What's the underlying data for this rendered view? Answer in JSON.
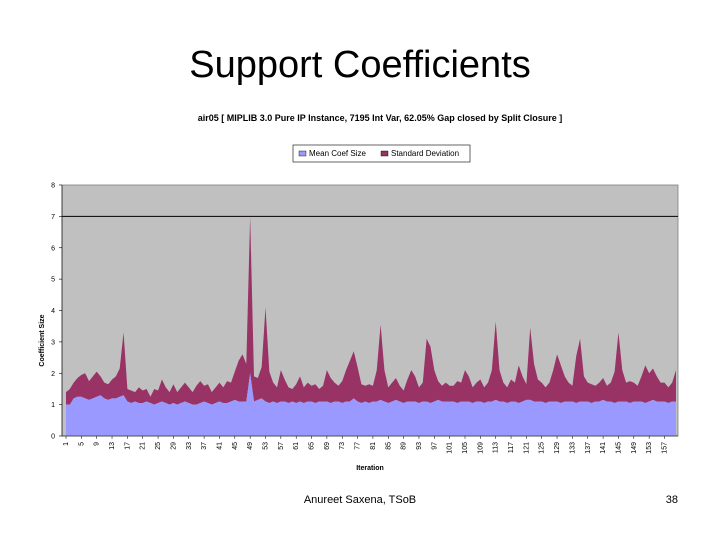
{
  "slide": {
    "title": "Support Coefficients",
    "footer_author": "Anureet Saxena, TSoB",
    "page_number": "38"
  },
  "chart_data": {
    "type": "area",
    "title": "air05 [ MIPLIB 3.0 Pure IP Instance, 7195 Int Var, 62.05% Gap closed by Split Closure ]",
    "xlabel": "Iteration",
    "ylabel": "Coefficient Size",
    "ylim": [
      0,
      8
    ],
    "yticks": [
      0,
      1,
      2,
      3,
      4,
      5,
      6,
      7,
      8
    ],
    "xtick_labels": [
      "1",
      "5",
      "9",
      "13",
      "17",
      "21",
      "25",
      "29",
      "33",
      "37",
      "41",
      "45",
      "49",
      "53",
      "57",
      "61",
      "65",
      "69",
      "73",
      "77",
      "81",
      "85",
      "89",
      "93",
      "97",
      "101",
      "105",
      "109",
      "113",
      "117",
      "121",
      "125",
      "129",
      "133",
      "137",
      "141",
      "145",
      "149",
      "153",
      "157"
    ],
    "reference_line": 7,
    "legend": {
      "placement": "top-center"
    },
    "stacked": true,
    "series": [
      {
        "name": "Mean Coef Size",
        "color": "#9999ff",
        "values": [
          1.0,
          1.0,
          1.2,
          1.25,
          1.25,
          1.2,
          1.15,
          1.2,
          1.25,
          1.3,
          1.2,
          1.15,
          1.2,
          1.2,
          1.25,
          1.3,
          1.1,
          1.05,
          1.1,
          1.05,
          1.05,
          1.1,
          1.05,
          1.0,
          1.05,
          1.1,
          1.05,
          1.0,
          1.05,
          1.0,
          1.05,
          1.1,
          1.05,
          1.0,
          1.0,
          1.05,
          1.1,
          1.05,
          1.0,
          1.05,
          1.1,
          1.05,
          1.05,
          1.1,
          1.15,
          1.1,
          1.1,
          1.1,
          2.0,
          1.1,
          1.15,
          1.2,
          1.1,
          1.05,
          1.1,
          1.05,
          1.1,
          1.1,
          1.05,
          1.1,
          1.05,
          1.1,
          1.05,
          1.1,
          1.1,
          1.05,
          1.1,
          1.1,
          1.1,
          1.05,
          1.1,
          1.1,
          1.05,
          1.1,
          1.1,
          1.2,
          1.1,
          1.05,
          1.1,
          1.05,
          1.1,
          1.1,
          1.15,
          1.1,
          1.05,
          1.1,
          1.15,
          1.1,
          1.05,
          1.1,
          1.1,
          1.1,
          1.05,
          1.1,
          1.1,
          1.05,
          1.1,
          1.15,
          1.1,
          1.1,
          1.1,
          1.1,
          1.05,
          1.1,
          1.1,
          1.1,
          1.05,
          1.1,
          1.1,
          1.05,
          1.1,
          1.1,
          1.15,
          1.1,
          1.1,
          1.05,
          1.1,
          1.1,
          1.05,
          1.1,
          1.15,
          1.15,
          1.1,
          1.1,
          1.1,
          1.05,
          1.1,
          1.1,
          1.1,
          1.05,
          1.1,
          1.1,
          1.1,
          1.05,
          1.1,
          1.1,
          1.1,
          1.05,
          1.1,
          1.1,
          1.15,
          1.1,
          1.1,
          1.05,
          1.1,
          1.1,
          1.1,
          1.05,
          1.1,
          1.1,
          1.1,
          1.05,
          1.1,
          1.15,
          1.1,
          1.1,
          1.1,
          1.05,
          1.1,
          1.1
        ]
      },
      {
        "name": "Standard Deviation",
        "color": "#993366",
        "values": [
          0.4,
          0.5,
          0.5,
          0.6,
          0.7,
          0.8,
          0.6,
          0.7,
          0.8,
          0.6,
          0.5,
          0.5,
          0.6,
          0.7,
          0.9,
          2.0,
          0.4,
          0.4,
          0.3,
          0.5,
          0.4,
          0.4,
          0.2,
          0.5,
          0.4,
          0.7,
          0.5,
          0.4,
          0.6,
          0.4,
          0.5,
          0.6,
          0.5,
          0.4,
          0.6,
          0.7,
          0.5,
          0.6,
          0.4,
          0.5,
          0.6,
          0.5,
          0.7,
          0.6,
          0.9,
          1.3,
          1.5,
          1.2,
          5.0,
          0.8,
          0.7,
          1.0,
          3.0,
          1.0,
          0.6,
          0.5,
          1.0,
          0.7,
          0.5,
          0.4,
          0.6,
          0.8,
          0.5,
          0.6,
          0.5,
          0.6,
          0.4,
          0.5,
          1.0,
          0.8,
          0.6,
          0.5,
          0.7,
          1.0,
          1.3,
          1.5,
          1.1,
          0.6,
          0.5,
          0.6,
          0.5,
          1.0,
          2.4,
          1.0,
          0.5,
          0.6,
          0.7,
          0.5,
          0.4,
          0.7,
          1.0,
          0.8,
          0.5,
          0.6,
          2.0,
          1.8,
          1.0,
          0.6,
          0.5,
          0.6,
          0.5,
          0.5,
          0.7,
          0.6,
          1.0,
          0.8,
          0.5,
          0.6,
          0.7,
          0.5,
          0.6,
          1.0,
          2.5,
          1.0,
          0.6,
          0.5,
          0.7,
          0.6,
          1.2,
          0.8,
          0.5,
          2.3,
          1.2,
          0.7,
          0.6,
          0.5,
          0.6,
          1.0,
          1.5,
          1.2,
          0.8,
          0.6,
          0.5,
          1.5,
          2.0,
          0.8,
          0.6,
          0.6,
          0.5,
          0.6,
          0.7,
          0.5,
          0.6,
          1.0,
          2.2,
          1.0,
          0.6,
          0.7,
          0.6,
          0.5,
          0.8,
          1.2,
          0.9,
          1.0,
          0.8,
          0.6,
          0.6,
          0.5,
          0.6,
          1.0,
          1.8,
          0.6
        ]
      }
    ]
  }
}
